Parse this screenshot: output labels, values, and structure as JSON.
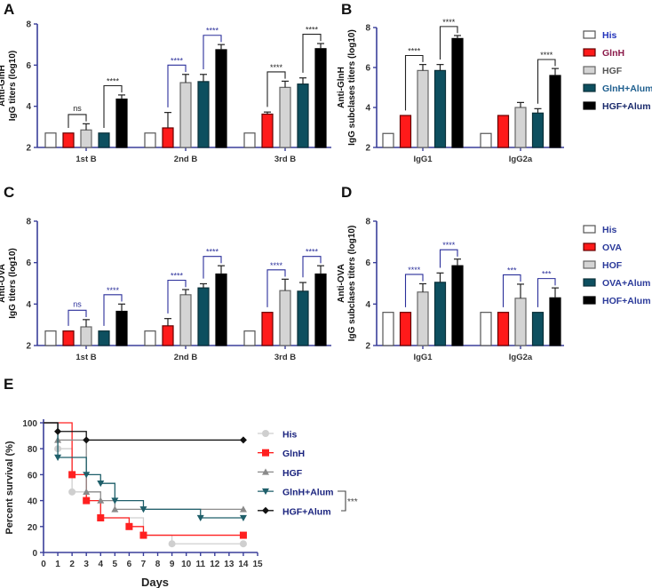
{
  "colors": {
    "His": "#ffffff",
    "GlnH": "#ff1a1a",
    "HGF": "#d4d4d4",
    "GlnH+Alum": "#0d4f5f",
    "HGF+Alum": "#000000",
    "axis": "#3a3f9a",
    "sig_blue": "#2a2f9a",
    "sig_black": "#222222"
  },
  "chart_data": [
    {
      "panel": "A",
      "type": "bar",
      "ylabel_line1": "Anti-GlnH",
      "ylabel_line2": "IgG titers (log10)",
      "ylim": [
        2,
        8
      ],
      "yticks": [
        "2",
        "4",
        "6",
        "8"
      ],
      "categories": [
        "1st B",
        "2nd B",
        "3rd B"
      ],
      "series": [
        {
          "name": "His",
          "values": [
            2.7,
            2.7,
            2.7
          ],
          "errors": [
            0,
            0,
            0
          ]
        },
        {
          "name": "GlnH",
          "values": [
            2.7,
            2.95,
            3.62
          ],
          "errors": [
            0,
            0.75,
            0.1
          ]
        },
        {
          "name": "HGF",
          "values": [
            2.85,
            5.15,
            4.92
          ],
          "errors": [
            0.3,
            0.4,
            0.3
          ]
        },
        {
          "name": "GlnH+Alum",
          "values": [
            2.7,
            5.2,
            5.08
          ],
          "errors": [
            0,
            0.35,
            0.3
          ]
        },
        {
          "name": "HGF+Alum",
          "values": [
            4.35,
            6.75,
            6.8
          ],
          "errors": [
            0.2,
            0.25,
            0.25
          ]
        }
      ],
      "significance": [
        {
          "group": 0,
          "from": 1,
          "to": 2,
          "label": "ns",
          "color": "black"
        },
        {
          "group": 0,
          "from": 3,
          "to": 4,
          "label": "****",
          "color": "black"
        },
        {
          "group": 1,
          "from": 1,
          "to": 2,
          "label": "****",
          "color": "blue"
        },
        {
          "group": 1,
          "from": 3,
          "to": 4,
          "label": "****",
          "color": "blue"
        },
        {
          "group": 2,
          "from": 1,
          "to": 2,
          "label": "****",
          "color": "black"
        },
        {
          "group": 2,
          "from": 3,
          "to": 4,
          "label": "****",
          "color": "black"
        }
      ]
    },
    {
      "panel": "B",
      "type": "bar",
      "ylabel_line1": "Anti-GlnH",
      "ylabel_line2": "IgG subclases titers (log10)",
      "ylim": [
        2,
        8
      ],
      "yticks": [
        "2",
        "4",
        "6",
        "8"
      ],
      "categories": [
        "IgG1",
        "IgG2a"
      ],
      "series": [
        {
          "name": "His",
          "values": [
            2.7,
            2.7
          ],
          "errors": [
            0,
            0
          ]
        },
        {
          "name": "GlnH",
          "values": [
            3.6,
            3.6
          ],
          "errors": [
            0,
            0
          ]
        },
        {
          "name": "HGF",
          "values": [
            5.85,
            4.0
          ],
          "errors": [
            0.3,
            0.25
          ]
        },
        {
          "name": "GlnH+Alum",
          "values": [
            5.85,
            3.72
          ],
          "errors": [
            0.3,
            0.22
          ]
        },
        {
          "name": "HGF+Alum",
          "values": [
            7.45,
            5.6
          ],
          "errors": [
            0.15,
            0.35
          ]
        }
      ],
      "legend": [
        "His",
        "GlnH",
        "HGF",
        "GlnH+Alum",
        "HGF+Alum"
      ],
      "legend_text_colors": [
        "#2233bb",
        "#8b1a4a",
        "#555555",
        "#1f5f8f",
        "#1a2a6c"
      ],
      "significance": [
        {
          "group": 0,
          "from": 1,
          "to": 2,
          "label": "****",
          "color": "black"
        },
        {
          "group": 0,
          "from": 3,
          "to": 4,
          "label": "****",
          "color": "black"
        },
        {
          "group": 1,
          "from": 3,
          "to": 4,
          "label": "****",
          "color": "black"
        }
      ]
    },
    {
      "panel": "C",
      "type": "bar",
      "ylabel_line1": "Anti-OVA",
      "ylabel_line2": "IgG titers (log10)",
      "ylim": [
        2,
        8
      ],
      "yticks": [
        "2",
        "4",
        "6",
        "8"
      ],
      "categories": [
        "1st B",
        "2nd B",
        "3rd B"
      ],
      "series": [
        {
          "name": "His",
          "values": [
            2.7,
            2.7,
            2.7
          ],
          "errors": [
            0,
            0,
            0
          ]
        },
        {
          "name": "OVA",
          "values": [
            2.7,
            2.95,
            3.6
          ],
          "errors": [
            0,
            0.35,
            0
          ]
        },
        {
          "name": "HOF",
          "values": [
            2.9,
            4.45,
            4.65
          ],
          "errors": [
            0.35,
            0.25,
            0.55
          ]
        },
        {
          "name": "OVA+Alum",
          "values": [
            2.7,
            4.78,
            4.62
          ],
          "errors": [
            0,
            0.2,
            0.42
          ]
        },
        {
          "name": "HOF+Alum",
          "values": [
            3.65,
            5.45,
            5.45
          ],
          "errors": [
            0.35,
            0.4,
            0.4
          ]
        }
      ],
      "significance": [
        {
          "group": 0,
          "from": 1,
          "to": 2,
          "label": "ns",
          "color": "blue"
        },
        {
          "group": 0,
          "from": 3,
          "to": 4,
          "label": "****",
          "color": "blue"
        },
        {
          "group": 1,
          "from": 1,
          "to": 2,
          "label": "****",
          "color": "blue"
        },
        {
          "group": 1,
          "from": 3,
          "to": 4,
          "label": "****",
          "color": "blue"
        },
        {
          "group": 2,
          "from": 1,
          "to": 2,
          "label": "****",
          "color": "blue"
        },
        {
          "group": 2,
          "from": 3,
          "to": 4,
          "label": "****",
          "color": "blue"
        }
      ]
    },
    {
      "panel": "D",
      "type": "bar",
      "ylabel_line1": "Anti-OVA",
      "ylabel_line2": "IgG subclases titers (log10)",
      "ylim": [
        2,
        8
      ],
      "yticks": [
        "2",
        "4",
        "6",
        "8"
      ],
      "categories": [
        "IgG1",
        "IgG2a"
      ],
      "series": [
        {
          "name": "His",
          "values": [
            3.6,
            3.6
          ],
          "errors": [
            0,
            0
          ]
        },
        {
          "name": "OVA",
          "values": [
            3.6,
            3.6
          ],
          "errors": [
            0,
            0
          ]
        },
        {
          "name": "HOF",
          "values": [
            4.58,
            4.28
          ],
          "errors": [
            0.4,
            0.68
          ]
        },
        {
          "name": "OVA+Alum",
          "values": [
            5.05,
            3.6
          ],
          "errors": [
            0.45,
            0
          ]
        },
        {
          "name": "HOF+Alum",
          "values": [
            5.85,
            4.3
          ],
          "errors": [
            0.32,
            0.48
          ]
        }
      ],
      "legend": [
        "His",
        "OVA",
        "HOF",
        "OVA+Alum",
        "HOF+Alum"
      ],
      "legend_text_colors": [
        "#2b3a9a",
        "#2b3a9a",
        "#2b3a9a",
        "#2b3a9a",
        "#2b3a9a"
      ],
      "significance": [
        {
          "group": 0,
          "from": 1,
          "to": 2,
          "label": "****",
          "color": "blue"
        },
        {
          "group": 0,
          "from": 3,
          "to": 4,
          "label": "****",
          "color": "blue"
        },
        {
          "group": 1,
          "from": 1,
          "to": 2,
          "label": "***",
          "color": "blue"
        },
        {
          "group": 1,
          "from": 3,
          "to": 4,
          "label": "***",
          "color": "blue"
        }
      ]
    },
    {
      "panel": "E",
      "type": "line",
      "subtype": "kaplan-meier",
      "xlabel": "Days",
      "ylabel": "Percent survival  (%)",
      "xlim": [
        0,
        15
      ],
      "ylim": [
        0,
        100
      ],
      "xticks": [
        "0",
        "1",
        "2",
        "3",
        "4",
        "5",
        "6",
        "7",
        "8",
        "9",
        "10",
        "11",
        "12",
        "13",
        "14",
        "15"
      ],
      "yticks": [
        "0",
        "20",
        "40",
        "60",
        "80",
        "100"
      ],
      "series": [
        {
          "name": "His",
          "color": "#cfcfcf",
          "marker": "circle",
          "steps": [
            [
              0,
              100
            ],
            [
              1,
              80
            ],
            [
              2,
              46.7
            ],
            [
              3,
              40
            ],
            [
              4,
              26.7
            ],
            [
              7,
              13.3
            ],
            [
              9,
              6.7
            ],
            [
              14,
              6.7
            ]
          ]
        },
        {
          "name": "GlnH",
          "color": "#ff2020",
          "marker": "square",
          "steps": [
            [
              0,
              100
            ],
            [
              2,
              60
            ],
            [
              3,
              40
            ],
            [
              4,
              26.7
            ],
            [
              6,
              20
            ],
            [
              7,
              13.3
            ],
            [
              14,
              13.3
            ]
          ]
        },
        {
          "name": "HGF",
          "color": "#8a8a8a",
          "marker": "triangle-up",
          "steps": [
            [
              0,
              100
            ],
            [
              1,
              86.7
            ],
            [
              3,
              46.7
            ],
            [
              4,
              40
            ],
            [
              5,
              33.3
            ],
            [
              14,
              33.3
            ]
          ]
        },
        {
          "name": "GlnH+Alum",
          "color": "#1f5f6a",
          "marker": "triangle-down",
          "steps": [
            [
              0,
              100
            ],
            [
              1,
              73.3
            ],
            [
              3,
              60
            ],
            [
              4,
              53.3
            ],
            [
              5,
              40
            ],
            [
              7,
              33.3
            ],
            [
              11,
              26.7
            ],
            [
              14,
              26.7
            ]
          ]
        },
        {
          "name": "HGF+Alum",
          "color": "#111111",
          "marker": "diamond",
          "steps": [
            [
              0,
              100
            ],
            [
              1,
              93.3
            ],
            [
              3,
              86.7
            ],
            [
              14,
              86.7
            ]
          ]
        }
      ],
      "legend_text_color": "#1a237e",
      "comparison": {
        "between": [
          "GlnH+Alum",
          "HGF+Alum"
        ],
        "label": "***"
      }
    }
  ]
}
